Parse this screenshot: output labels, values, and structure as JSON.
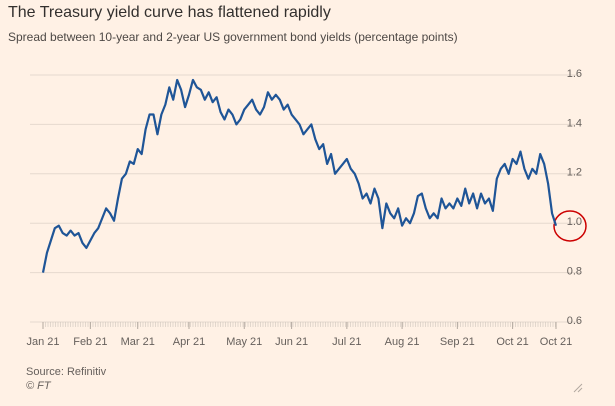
{
  "chart_data": {
    "type": "line",
    "title": "The Treasury yield curve has flattened rapidly",
    "subtitle": "Spread between 10-year and 2-year US government bond yields (percentage points)",
    "source": "Source: Refinitiv",
    "credit": "© FT",
    "series": [
      {
        "name": "10-year minus 2-year spread",
        "color": "#1f5597",
        "values": [
          0.8,
          0.88,
          0.93,
          0.98,
          0.99,
          0.96,
          0.95,
          0.97,
          0.95,
          0.96,
          0.92,
          0.9,
          0.93,
          0.96,
          0.98,
          1.02,
          1.06,
          1.04,
          1.01,
          1.1,
          1.18,
          1.2,
          1.25,
          1.24,
          1.3,
          1.28,
          1.38,
          1.44,
          1.44,
          1.36,
          1.44,
          1.48,
          1.55,
          1.5,
          1.58,
          1.54,
          1.47,
          1.52,
          1.58,
          1.55,
          1.54,
          1.5,
          1.53,
          1.49,
          1.51,
          1.45,
          1.42,
          1.46,
          1.44,
          1.4,
          1.42,
          1.46,
          1.48,
          1.5,
          1.46,
          1.44,
          1.47,
          1.53,
          1.5,
          1.52,
          1.5,
          1.46,
          1.48,
          1.44,
          1.42,
          1.4,
          1.36,
          1.38,
          1.4,
          1.34,
          1.3,
          1.32,
          1.24,
          1.28,
          1.2,
          1.22,
          1.24,
          1.26,
          1.22,
          1.2,
          1.16,
          1.1,
          1.12,
          1.08,
          1.14,
          1.1,
          0.98,
          1.08,
          1.04,
          1.02,
          1.06,
          0.99,
          1.02,
          1.0,
          1.04,
          1.11,
          1.12,
          1.06,
          1.02,
          1.04,
          1.02,
          1.1,
          1.06,
          1.08,
          1.06,
          1.1,
          1.07,
          1.14,
          1.08,
          1.12,
          1.06,
          1.12,
          1.08,
          1.1,
          1.05,
          1.18,
          1.22,
          1.24,
          1.2,
          1.26,
          1.24,
          1.29,
          1.22,
          1.18,
          1.22,
          1.2,
          1.28,
          1.24,
          1.16,
          1.04,
          0.99
        ]
      }
    ],
    "xlim": [
      0,
      130
    ],
    "xticks": [
      {
        "value": 0,
        "label": "Jan 21"
      },
      {
        "value": 12,
        "label": "Feb 21"
      },
      {
        "value": 24,
        "label": "Mar 21"
      },
      {
        "value": 37,
        "label": "Apr 21"
      },
      {
        "value": 51,
        "label": "May 21"
      },
      {
        "value": 63,
        "label": "Jun 21"
      },
      {
        "value": 77,
        "label": "Jul 21"
      },
      {
        "value": 91,
        "label": "Aug 21"
      },
      {
        "value": 105,
        "label": "Sep 21"
      },
      {
        "value": 119,
        "label": "Oct 21"
      },
      {
        "value": 130,
        "label": "Oct 21"
      }
    ],
    "ylim": [
      0.6,
      1.65
    ],
    "yticks": [
      0.6,
      0.8,
      {
        "value": 1,
        "label": "1.0"
      },
      1.2,
      1.4,
      1.6
    ],
    "grid": true
  }
}
